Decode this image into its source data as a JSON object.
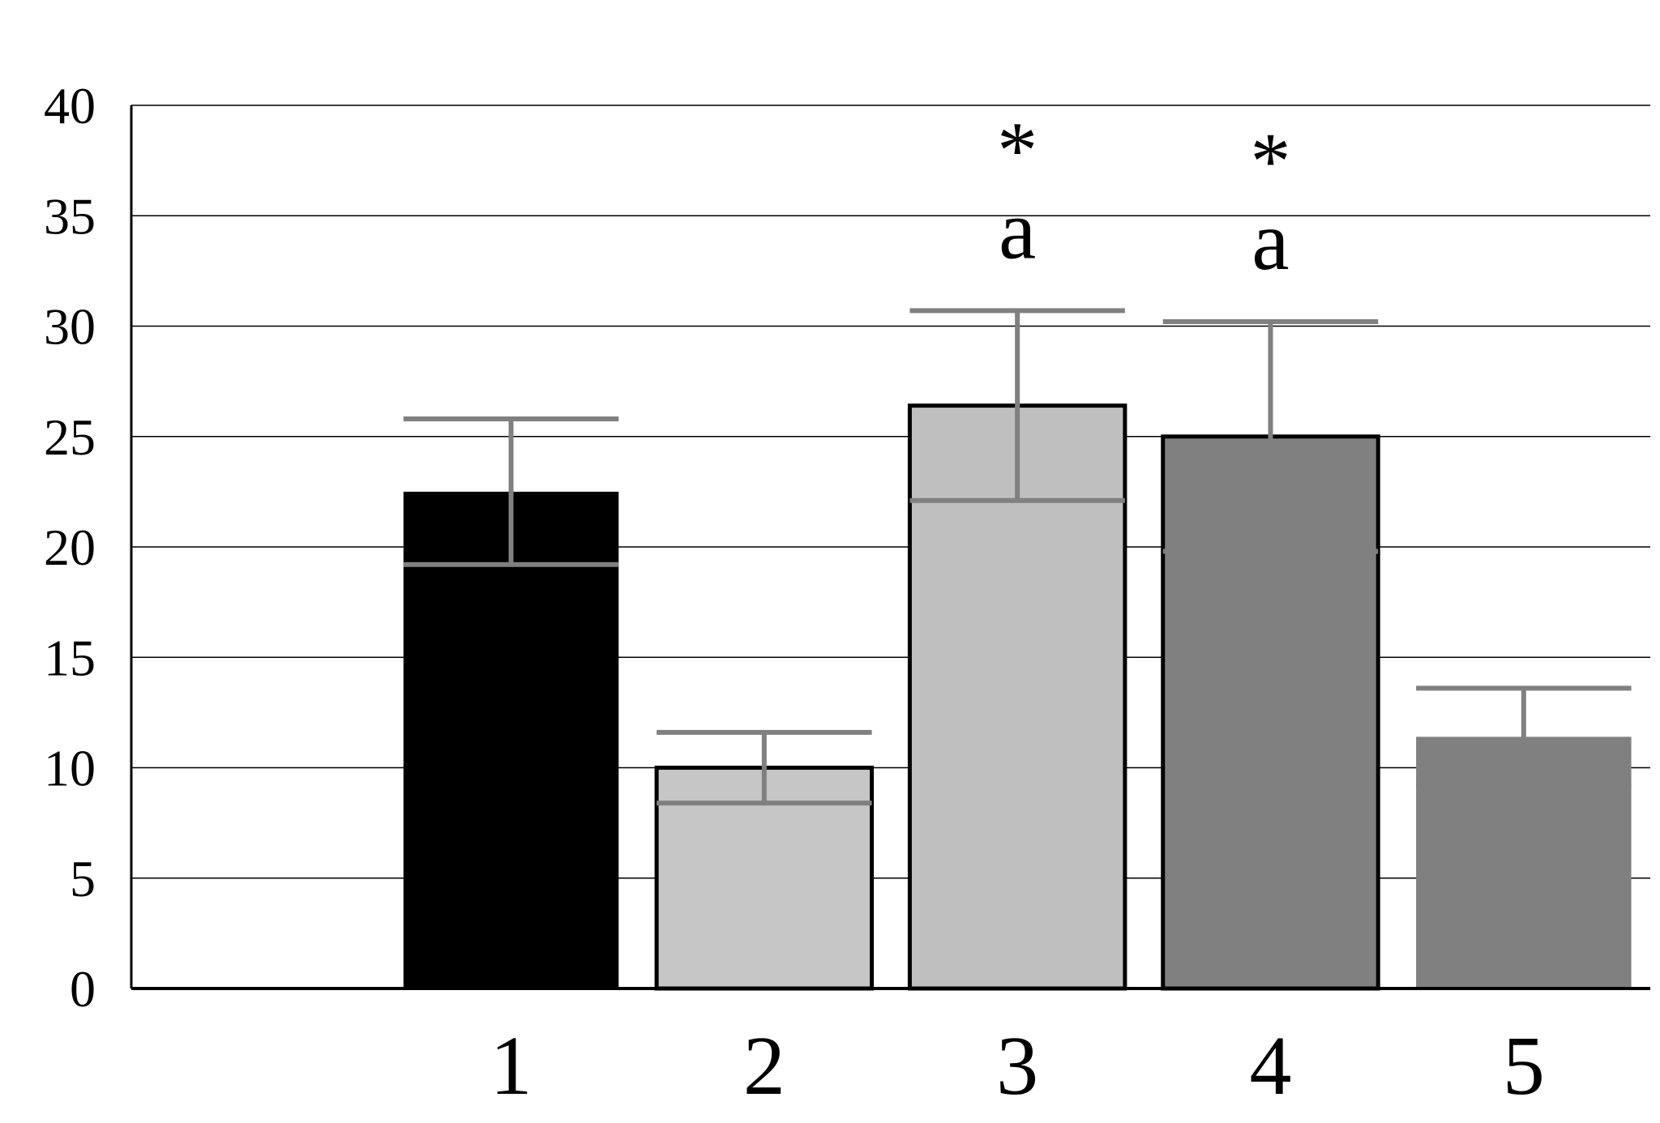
{
  "chart_data": {
    "type": "bar",
    "title": "",
    "xlabel": "",
    "ylabel": "",
    "categories": [
      "",
      "1",
      "2",
      "3",
      "4",
      "5"
    ],
    "values": [
      null,
      22.5,
      10.0,
      26.4,
      25.0,
      11.4
    ],
    "errors": [
      null,
      3.3,
      1.6,
      4.3,
      5.2,
      2.2
    ],
    "ylim": [
      0,
      40
    ],
    "yticks": [
      0,
      5,
      10,
      15,
      20,
      25,
      30,
      35,
      40
    ],
    "ytick_labels": [
      "0",
      "5",
      "10",
      "15",
      "20",
      "25",
      "30",
      "35",
      "40"
    ],
    "grid": true,
    "colors": [
      "#ffffff",
      "#000000",
      "#c6c6c6",
      "#bfbfbf",
      "#808080",
      "#808080"
    ],
    "bar_outlined": [
      false,
      false,
      true,
      true,
      true,
      false
    ],
    "error_color": "#808080",
    "annotations": [
      {
        "category": "3",
        "letter": "a",
        "symbol": "*"
      },
      {
        "category": "4",
        "letter": "a",
        "symbol": "*"
      }
    ]
  }
}
